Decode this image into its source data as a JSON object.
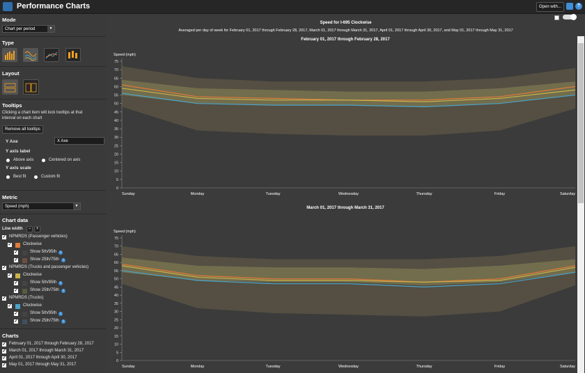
{
  "app": {
    "title": "Performance Charts",
    "open_with": "Open with...",
    "save_icon": "save-icon",
    "help_icon": "help-icon"
  },
  "sidebar": {
    "mode_label": "Mode",
    "mode_value": "Chart per period",
    "type_label": "Type",
    "layout_label": "Layout",
    "tooltips_label": "Tooltips",
    "tooltips_desc_1": "Clicking a chart item will lock tooltips at that",
    "tooltips_desc_2": "interval on each chart",
    "remove_tooltips": "Remove all tooltips",
    "y_axe_label": "Y Axe",
    "x_axe_label": "X Axe",
    "y_axis_label_title": "Y axis label",
    "above_axis": "Above axis",
    "centered_on_axis": "Centered on axis",
    "y_axis_scale_title": "Y axis scale",
    "best_fit": "Best fit",
    "custom_fit": "Custom fit",
    "metric_label": "Metric",
    "metric_value": "Speed (mph)",
    "chart_data_label": "Chart data",
    "line_width_label": "Line width",
    "line_width_minus": "−",
    "line_width_plus": "+",
    "datasets": [
      {
        "name": "NPMRDS (Passenger vehicles)",
        "direction": "Clockwise",
        "color": "#e07b3a"
      },
      {
        "name": "NPMRDS (Trucks and passenger vehicles)",
        "direction": "Clockwise",
        "color": "#c9b24a"
      },
      {
        "name": "NPMRDS (Trucks)",
        "direction": "Clockwise",
        "color": "#4aa3c9"
      }
    ],
    "show_5_95": "Show 5th/95th",
    "show_25_75": "Show 25th/75th",
    "charts_label": "Charts",
    "charts": [
      "February 01, 2017 through February 28, 2017",
      "March 01, 2017 through March 31, 2017",
      "April 01, 2017 through April 30, 2017",
      "May 01, 2017 through May 31, 2017"
    ]
  },
  "main": {
    "title": "Speed for I-695  Clockwise",
    "subtitle": "Averaged per day of week for February 01, 2017 through February 28, 2017, March 01, 2017 through March 31, 2017, April 01, 2017 through April 30, 2017, and May 01, 2017 through May 31, 2017"
  },
  "chart_data": [
    {
      "type": "area",
      "title": "February 01, 2017 through February 28, 2017",
      "ylabel": "Speed (mph)",
      "ylim": [
        0,
        75
      ],
      "categories": [
        "Sunday",
        "Monday",
        "Tuesday",
        "Wednesday",
        "Thursday",
        "Friday",
        "Saturday"
      ],
      "y_ticks": [
        0,
        5,
        10,
        15,
        20,
        25,
        30,
        35,
        40,
        45,
        50,
        55,
        60,
        65,
        70,
        75
      ],
      "band_5_95": {
        "low": [
          48,
          34,
          32,
          31,
          31,
          34,
          47
        ],
        "high": [
          72,
          65,
          63,
          63,
          63,
          65,
          71
        ]
      },
      "band_25_75": {
        "low": [
          55,
          50,
          49,
          49,
          48,
          50,
          55
        ],
        "high": [
          64,
          59,
          58,
          57,
          57,
          59,
          63
        ]
      },
      "series": [
        {
          "name": "NPMRDS (Passenger vehicles)",
          "color": "#e07b3a",
          "values": [
            61,
            54,
            53,
            52,
            52,
            54,
            60
          ]
        },
        {
          "name": "NPMRDS (Trucks and passenger vehicles)",
          "color": "#c9b24a",
          "values": [
            59,
            53,
            52,
            52,
            51,
            53,
            58
          ]
        },
        {
          "name": "NPMRDS (Trucks)",
          "color": "#4aa3c9",
          "values": [
            56,
            50,
            49,
            49,
            48,
            50,
            55
          ]
        }
      ]
    },
    {
      "type": "area",
      "title": "March 01, 2017 through March 31, 2017",
      "ylabel": "Speed (mph)",
      "ylim": [
        0,
        75
      ],
      "categories": [
        "Sunday",
        "Monday",
        "Tuesday",
        "Wednesday",
        "Thursday",
        "Friday",
        "Saturday"
      ],
      "y_ticks": [
        0,
        5,
        10,
        15,
        20,
        25,
        30,
        35,
        40,
        45,
        50,
        55,
        60,
        65,
        70,
        75
      ],
      "band_5_95": {
        "low": [
          47,
          32,
          29,
          28,
          27,
          30,
          46
        ],
        "high": [
          70,
          64,
          62,
          62,
          62,
          64,
          70
        ]
      },
      "band_25_75": {
        "low": [
          54,
          49,
          48,
          48,
          46,
          48,
          54
        ],
        "high": [
          63,
          58,
          57,
          57,
          56,
          58,
          62
        ]
      },
      "series": [
        {
          "name": "NPMRDS (Passenger vehicles)",
          "color": "#e07b3a",
          "values": [
            59,
            52,
            50,
            50,
            48,
            50,
            58
          ]
        },
        {
          "name": "NPMRDS (Trucks and passenger vehicles)",
          "color": "#c9b24a",
          "values": [
            58,
            51,
            49,
            49,
            48,
            49,
            57
          ]
        },
        {
          "name": "NPMRDS (Trucks)",
          "color": "#4aa3c9",
          "values": [
            55,
            49,
            47,
            47,
            45,
            47,
            54
          ]
        }
      ]
    }
  ]
}
